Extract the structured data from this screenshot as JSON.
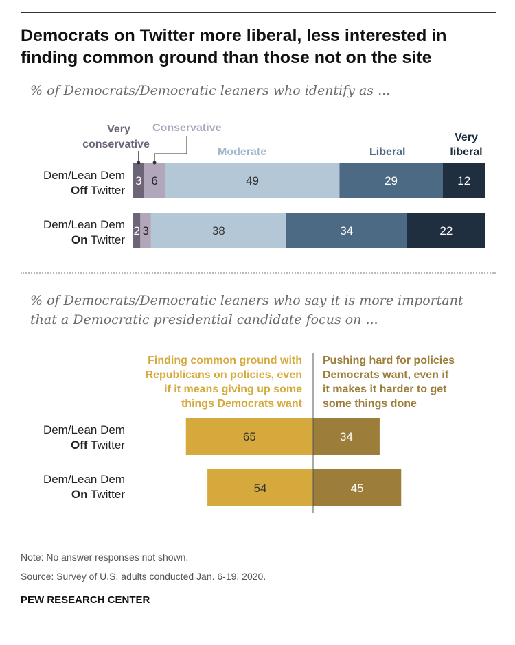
{
  "title": "Democrats on Twitter more liberal, less interested in finding common ground than those not on the site",
  "subtitle1": "% of Democrats/Democratic leaners who identify as ...",
  "subtitle2_line1": "% of Democrats/Democratic leaners who say it is more important",
  "subtitle2_line2": "that a Democratic presidential candidate focus on ...",
  "rows": [
    {
      "line1": "Dem/Lean Dem",
      "bold": "Off",
      "rest": " Twitter"
    },
    {
      "line1": "Dem/Lean Dem",
      "bold": "On",
      "rest": " Twitter"
    }
  ],
  "ideology_labels": {
    "very_conservative_1": "Very",
    "very_conservative_2": "conservative",
    "conservative": "Conservative",
    "moderate": "Moderate",
    "liberal": "Liberal",
    "very_liberal_1": "Very",
    "very_liberal_2": "liberal"
  },
  "common_ground_label": [
    "Finding common ground with",
    "Republicans on policies, even",
    "if it means giving up some",
    "things Democrats want"
  ],
  "pushing_hard_label": [
    "Pushing hard for policies",
    "Democrats want, even if",
    "it makes it harder to get",
    "some things done"
  ],
  "note": "Note: No answer responses not shown.",
  "source": "Source: Survey of U.S. adults conducted Jan. 6-19, 2020.",
  "org": "PEW RESEARCH CENTER",
  "colors": {
    "very_conservative": "#6e6478",
    "conservative": "#b2a6bb",
    "moderate": "#b3c7d6",
    "liberal": "#4d6a85",
    "very_liberal": "#1f2f40",
    "common_ground": "#d6a93c",
    "pushing_hard": "#9c7d3a"
  },
  "chart_data": [
    {
      "type": "bar",
      "orientation": "horizontal-stacked",
      "categories": [
        "Dem/Lean Dem Off Twitter",
        "Dem/Lean Dem On Twitter"
      ],
      "series": [
        {
          "name": "Very conservative",
          "values": [
            3,
            2
          ]
        },
        {
          "name": "Conservative",
          "values": [
            6,
            3
          ]
        },
        {
          "name": "Moderate",
          "values": [
            49,
            38
          ]
        },
        {
          "name": "Liberal",
          "values": [
            29,
            34
          ]
        },
        {
          "name": "Very liberal",
          "values": [
            12,
            22
          ]
        }
      ]
    },
    {
      "type": "bar",
      "orientation": "horizontal-diverging",
      "categories": [
        "Dem/Lean Dem Off Twitter",
        "Dem/Lean Dem On Twitter"
      ],
      "series": [
        {
          "name": "Finding common ground with Republicans on policies, even if it means giving up some things Democrats want",
          "values": [
            65,
            54
          ]
        },
        {
          "name": "Pushing hard for policies Democrats want, even if it makes it harder to get some things done",
          "values": [
            34,
            45
          ]
        }
      ]
    }
  ]
}
